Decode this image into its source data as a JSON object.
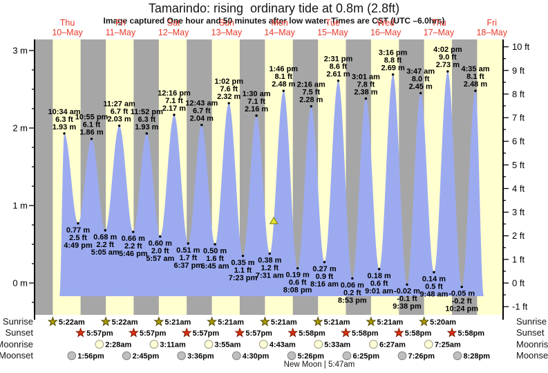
{
  "header": {
    "title": "Tamarindo: rising  ordinary tide at 0.8m (2.8ft)",
    "subtitle": "Image captured One hour and 50 minutes after low water. Times are CST (UTC –6.0hrs)"
  },
  "days": [
    {
      "weekday": "Thu",
      "date": "10–May"
    },
    {
      "weekday": "Fri",
      "date": "11–May"
    },
    {
      "weekday": "Sat",
      "date": "12–May"
    },
    {
      "weekday": "Sun",
      "date": "13–May"
    },
    {
      "weekday": "Mon",
      "date": "14–May"
    },
    {
      "weekday": "Tue",
      "date": "15–May"
    },
    {
      "weekday": "Wed",
      "date": "16–May"
    },
    {
      "weekday": "Thu",
      "date": "17–May"
    },
    {
      "weekday": "Fri",
      "date": "18–May"
    }
  ],
  "axes": {
    "left_ticks": [
      {
        "m": 0,
        "label": "0 m"
      },
      {
        "m": 1,
        "label": "1 m"
      },
      {
        "m": 2,
        "label": "2 m"
      },
      {
        "m": 3,
        "label": "3 m"
      }
    ],
    "right_ticks": [
      {
        "ft": -1,
        "label": "-1 ft"
      },
      {
        "ft": 0,
        "label": "0 ft"
      },
      {
        "ft": 1,
        "label": "1 ft"
      },
      {
        "ft": 2,
        "label": "2 ft"
      },
      {
        "ft": 3,
        "label": "3 ft"
      },
      {
        "ft": 4,
        "label": "4 ft"
      },
      {
        "ft": 5,
        "label": "5 ft"
      },
      {
        "ft": 6,
        "label": "6 ft"
      },
      {
        "ft": 7,
        "label": "7 ft"
      },
      {
        "ft": 8,
        "label": "8 ft"
      },
      {
        "ft": 9,
        "label": "9 ft"
      },
      {
        "ft": 10,
        "label": "10 ft"
      }
    ]
  },
  "chart_data": {
    "type": "area",
    "title": "Tamarindo: rising  ordinary tide at 0.8m (2.8ft)",
    "x_range": [
      "Thu 10–May",
      "Fri 18–May"
    ],
    "y_axis_left": {
      "unit": "m",
      "ticks": [
        0,
        1,
        2,
        3
      ]
    },
    "y_axis_right": {
      "unit": "ft",
      "ticks": [
        -1,
        0,
        1,
        2,
        3,
        4,
        5,
        6,
        7,
        8,
        9,
        10
      ]
    },
    "events": [
      {
        "kind": "high",
        "day_index": 0,
        "time": "10:34 am",
        "label_ft": "6.3 ft",
        "label_m": "1.93 m",
        "height_m": 1.93
      },
      {
        "kind": "low",
        "day_index": 0,
        "time": "4:49 pm",
        "label_ft": "2.5 ft",
        "label_m": "0.77 m",
        "height_m": 0.77
      },
      {
        "kind": "high",
        "day_index": 0,
        "time": "10:55 pm",
        "label_ft": "6.1 ft",
        "label_m": "1.86 m",
        "height_m": 1.86
      },
      {
        "kind": "low",
        "day_index": 1,
        "time": "5:05 am",
        "label_ft": "2.2 ft",
        "label_m": "0.68 m",
        "height_m": 0.68
      },
      {
        "kind": "high",
        "day_index": 1,
        "time": "11:27 am",
        "label_ft": "6.7 ft",
        "label_m": "2.03 m",
        "height_m": 2.03
      },
      {
        "kind": "low",
        "day_index": 1,
        "time": "5:46 pm",
        "label_ft": "2.2 ft",
        "label_m": "0.66 m",
        "height_m": 0.66
      },
      {
        "kind": "high",
        "day_index": 1,
        "time": "11:52 pm",
        "label_ft": "6.3 ft",
        "label_m": "1.93 m",
        "height_m": 1.93
      },
      {
        "kind": "low",
        "day_index": 2,
        "time": "5:57 am",
        "label_ft": "2.0 ft",
        "label_m": "0.60 m",
        "height_m": 0.6
      },
      {
        "kind": "high",
        "day_index": 2,
        "time": "12:16 pm",
        "label_ft": "7.1 ft",
        "label_m": "2.17 m",
        "height_m": 2.17
      },
      {
        "kind": "low",
        "day_index": 2,
        "time": "6:37 pm",
        "label_ft": "1.7 ft",
        "label_m": "0.51 m",
        "height_m": 0.51
      },
      {
        "kind": "high",
        "day_index": 3,
        "time": "12:43 am",
        "label_ft": "6.7 ft",
        "label_m": "2.04 m",
        "height_m": 2.04
      },
      {
        "kind": "low",
        "day_index": 3,
        "time": "6:45 am",
        "label_ft": "1.6 ft",
        "label_m": "0.50 m",
        "height_m": 0.5
      },
      {
        "kind": "high",
        "day_index": 3,
        "time": "1:02 pm",
        "label_ft": "7.6 ft",
        "label_m": "2.32 m",
        "height_m": 2.32
      },
      {
        "kind": "low",
        "day_index": 3,
        "time": "7:23 pm",
        "label_ft": "1.1 ft",
        "label_m": "0.35 m",
        "height_m": 0.35
      },
      {
        "kind": "high",
        "day_index": 4,
        "time": "1:30 am",
        "label_ft": "7.1 ft",
        "label_m": "2.16 m",
        "height_m": 2.16
      },
      {
        "kind": "low",
        "day_index": 4,
        "time": "7:31 am",
        "label_ft": "1.2 ft",
        "label_m": "0.38 m",
        "height_m": 0.38
      },
      {
        "kind": "high",
        "day_index": 4,
        "time": "1:46 pm",
        "label_ft": "8.1 ft",
        "label_m": "2.48 m",
        "height_m": 2.48
      },
      {
        "kind": "low",
        "day_index": 4,
        "time": "8:08 pm",
        "label_ft": "0.6 ft",
        "label_m": "0.19 m",
        "height_m": 0.19
      },
      {
        "kind": "high",
        "day_index": 5,
        "time": "2:16 am",
        "label_ft": "7.5 ft",
        "label_m": "2.28 m",
        "height_m": 2.28
      },
      {
        "kind": "low",
        "day_index": 5,
        "time": "8:16 am",
        "label_ft": "0.9 ft",
        "label_m": "0.27 m",
        "height_m": 0.27
      },
      {
        "kind": "high",
        "day_index": 5,
        "time": "2:31 pm",
        "label_ft": "8.6 ft",
        "label_m": "2.61 m",
        "height_m": 2.61
      },
      {
        "kind": "low",
        "day_index": 5,
        "time": "8:53 pm",
        "label_ft": "0.2 ft",
        "label_m": "0.06 m",
        "height_m": 0.06
      },
      {
        "kind": "high",
        "day_index": 6,
        "time": "3:01 am",
        "label_ft": "7.8 ft",
        "label_m": "2.38 m",
        "height_m": 2.38
      },
      {
        "kind": "low",
        "day_index": 6,
        "time": "9:01 am",
        "label_ft": "0.6 ft",
        "label_m": "0.18 m",
        "height_m": 0.18
      },
      {
        "kind": "high",
        "day_index": 6,
        "time": "3:16 pm",
        "label_ft": "8.8 ft",
        "label_m": "2.69 m",
        "height_m": 2.69
      },
      {
        "kind": "low",
        "day_index": 6,
        "time": "9:38 pm",
        "label_ft": "-0.1 ft",
        "label_m": "-0.02 m",
        "height_m": -0.02
      },
      {
        "kind": "high",
        "day_index": 7,
        "time": "3:47 am",
        "label_ft": "8.0 ft",
        "label_m": "2.45 m",
        "height_m": 2.45
      },
      {
        "kind": "low",
        "day_index": 7,
        "time": "9:48 am",
        "label_ft": "0.5 ft",
        "label_m": "0.14 m",
        "height_m": 0.14
      },
      {
        "kind": "high",
        "day_index": 7,
        "time": "4:02 pm",
        "label_ft": "9.0 ft",
        "label_m": "2.73 m",
        "height_m": 2.73
      },
      {
        "kind": "low",
        "day_index": 7,
        "time": "10:24 pm",
        "label_ft": "-0.2 ft",
        "label_m": "-0.05 m",
        "height_m": -0.05
      },
      {
        "kind": "high",
        "day_index": 8,
        "time": "4:35 am",
        "label_ft": "8.1 ft",
        "label_m": "2.48 m",
        "height_m": 2.48
      }
    ],
    "current_marker": {
      "height_m": 0.8,
      "height_ft": 2.8,
      "after_low_day": 4,
      "after_low_time": "7:31 am"
    }
  },
  "almanac": {
    "rows": [
      {
        "label": "Sunrise",
        "icon": "sunrise-icon",
        "events": [
          {
            "day": 0,
            "time": "5:22am"
          },
          {
            "day": 1,
            "time": "5:22am"
          },
          {
            "day": 2,
            "time": "5:21am"
          },
          {
            "day": 3,
            "time": "5:21am"
          },
          {
            "day": 4,
            "time": "5:21am"
          },
          {
            "day": 5,
            "time": "5:21am"
          },
          {
            "day": 6,
            "time": "5:21am"
          },
          {
            "day": 7,
            "time": "5:20am"
          }
        ]
      },
      {
        "label": "Sunset",
        "icon": "sunset-icon",
        "events": [
          {
            "day": 0,
            "time": "5:57pm"
          },
          {
            "day": 1,
            "time": "5:57pm"
          },
          {
            "day": 2,
            "time": "5:57pm"
          },
          {
            "day": 3,
            "time": "5:57pm"
          },
          {
            "day": 4,
            "time": "5:58pm"
          },
          {
            "day": 5,
            "time": "5:58pm"
          },
          {
            "day": 6,
            "time": "5:58pm"
          },
          {
            "day": 7,
            "time": "5:58pm"
          }
        ]
      },
      {
        "label": "Moonrise",
        "icon": "moonrise-icon",
        "events": [
          {
            "day": 1,
            "time": "2:28am"
          },
          {
            "day": 2,
            "time": "3:11am"
          },
          {
            "day": 3,
            "time": "3:55am"
          },
          {
            "day": 4,
            "time": "4:43am"
          },
          {
            "day": 5,
            "time": "5:33am"
          },
          {
            "day": 6,
            "time": "6:27am"
          },
          {
            "day": 7,
            "time": "7:25am"
          }
        ]
      },
      {
        "label": "Moonset",
        "icon": "moonset-icon",
        "events": [
          {
            "day": 0,
            "time": "1:56pm"
          },
          {
            "day": 1,
            "time": "2:45pm"
          },
          {
            "day": 2,
            "time": "3:36pm"
          },
          {
            "day": 3,
            "time": "4:30pm"
          },
          {
            "day": 4,
            "time": "5:26pm"
          },
          {
            "day": 5,
            "time": "6:25pm"
          },
          {
            "day": 6,
            "time": "7:26pm"
          },
          {
            "day": 7,
            "time": "8:28pm"
          }
        ]
      }
    ],
    "new_moon": {
      "label": "New Moon | 5:47am",
      "day": 5,
      "time": "5:47am"
    }
  },
  "colors": {
    "day_band": "#ffffd0",
    "night_band": "#a6a6a6",
    "tide_fill": "#9cabf0",
    "day_label_red": "#e8392b",
    "annotation_text": "#000000",
    "sunrise_star_fill": "#ab9b00",
    "sunrise_star_stroke": "#4d4500",
    "sunset_star_fill": "#dd2f10",
    "sunset_star_stroke": "#7a1800",
    "moonrise_circle_fill": "#ffffd8",
    "moonrise_circle_stroke": "#99997d",
    "moonset_circle_fill": "#bfbfbf",
    "moonset_circle_stroke": "#7f7f7f",
    "marker_fill": "#e6e332",
    "marker_stroke": "#787800",
    "axis_color": "#000000"
  }
}
